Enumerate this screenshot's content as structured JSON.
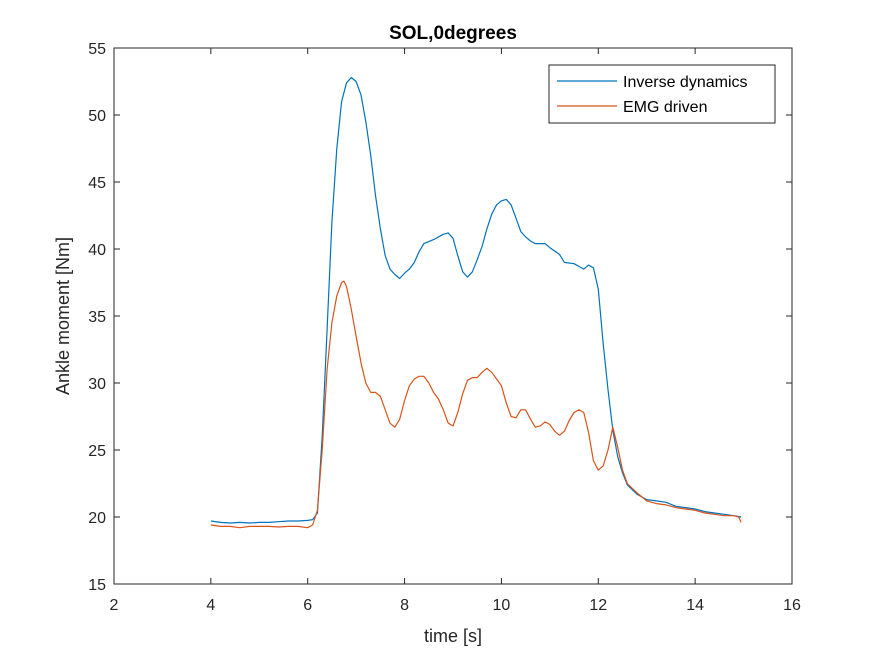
{
  "chart_data": {
    "type": "line",
    "title": "SOL,0degrees",
    "xlabel": "time  [s]",
    "ylabel": "Ankle moment [Nm]",
    "xlim": [
      2,
      16
    ],
    "ylim": [
      15,
      55
    ],
    "xticks": [
      2,
      4,
      6,
      8,
      10,
      12,
      14,
      16
    ],
    "yticks": [
      15,
      20,
      25,
      30,
      35,
      40,
      45,
      50,
      55
    ],
    "grid": false,
    "legend_position": "top-right",
    "series": [
      {
        "name": "Inverse dynamics",
        "color": "#0072BD",
        "points": [
          [
            4.0,
            19.7
          ],
          [
            4.2,
            19.6
          ],
          [
            4.4,
            19.55
          ],
          [
            4.6,
            19.6
          ],
          [
            4.8,
            19.55
          ],
          [
            5.0,
            19.6
          ],
          [
            5.2,
            19.6
          ],
          [
            5.4,
            19.65
          ],
          [
            5.6,
            19.7
          ],
          [
            5.8,
            19.7
          ],
          [
            6.0,
            19.75
          ],
          [
            6.1,
            19.8
          ],
          [
            6.2,
            20.3
          ],
          [
            6.3,
            26.0
          ],
          [
            6.4,
            34.0
          ],
          [
            6.5,
            42.0
          ],
          [
            6.6,
            47.5
          ],
          [
            6.7,
            51.0
          ],
          [
            6.8,
            52.4
          ],
          [
            6.9,
            52.8
          ],
          [
            7.0,
            52.5
          ],
          [
            7.1,
            51.5
          ],
          [
            7.2,
            49.5
          ],
          [
            7.3,
            47.0
          ],
          [
            7.4,
            44.0
          ],
          [
            7.5,
            41.5
          ],
          [
            7.6,
            39.5
          ],
          [
            7.7,
            38.5
          ],
          [
            7.8,
            38.1
          ],
          [
            7.9,
            37.8
          ],
          [
            8.0,
            38.2
          ],
          [
            8.1,
            38.5
          ],
          [
            8.2,
            39.0
          ],
          [
            8.3,
            39.8
          ],
          [
            8.4,
            40.4
          ],
          [
            8.6,
            40.7
          ],
          [
            8.8,
            41.1
          ],
          [
            8.9,
            41.2
          ],
          [
            9.0,
            40.8
          ],
          [
            9.1,
            39.5
          ],
          [
            9.2,
            38.3
          ],
          [
            9.3,
            37.9
          ],
          [
            9.4,
            38.3
          ],
          [
            9.5,
            39.2
          ],
          [
            9.6,
            40.2
          ],
          [
            9.7,
            41.5
          ],
          [
            9.8,
            42.6
          ],
          [
            9.9,
            43.3
          ],
          [
            10.0,
            43.6
          ],
          [
            10.1,
            43.7
          ],
          [
            10.2,
            43.3
          ],
          [
            10.3,
            42.3
          ],
          [
            10.4,
            41.3
          ],
          [
            10.5,
            40.9
          ],
          [
            10.6,
            40.6
          ],
          [
            10.7,
            40.4
          ],
          [
            10.9,
            40.4
          ],
          [
            11.0,
            40.1
          ],
          [
            11.2,
            39.6
          ],
          [
            11.3,
            39.0
          ],
          [
            11.5,
            38.9
          ],
          [
            11.6,
            38.7
          ],
          [
            11.7,
            38.5
          ],
          [
            11.8,
            38.8
          ],
          [
            11.9,
            38.6
          ],
          [
            12.0,
            37.0
          ],
          [
            12.1,
            33.0
          ],
          [
            12.2,
            29.5
          ],
          [
            12.3,
            26.5
          ],
          [
            12.4,
            24.5
          ],
          [
            12.5,
            23.3
          ],
          [
            12.6,
            22.4
          ],
          [
            12.8,
            21.7
          ],
          [
            13.0,
            21.3
          ],
          [
            13.2,
            21.2
          ],
          [
            13.4,
            21.1
          ],
          [
            13.6,
            20.8
          ],
          [
            13.8,
            20.7
          ],
          [
            14.0,
            20.6
          ],
          [
            14.2,
            20.4
          ],
          [
            14.4,
            20.3
          ],
          [
            14.6,
            20.2
          ],
          [
            14.8,
            20.1
          ],
          [
            14.95,
            20.0
          ]
        ]
      },
      {
        "name": "EMG driven",
        "color": "#D95319",
        "points": [
          [
            4.0,
            19.4
          ],
          [
            4.2,
            19.3
          ],
          [
            4.4,
            19.3
          ],
          [
            4.6,
            19.2
          ],
          [
            4.8,
            19.3
          ],
          [
            5.0,
            19.3
          ],
          [
            5.2,
            19.3
          ],
          [
            5.4,
            19.25
          ],
          [
            5.6,
            19.3
          ],
          [
            5.8,
            19.3
          ],
          [
            6.0,
            19.2
          ],
          [
            6.1,
            19.4
          ],
          [
            6.2,
            20.5
          ],
          [
            6.3,
            25.0
          ],
          [
            6.4,
            31.0
          ],
          [
            6.5,
            34.5
          ],
          [
            6.6,
            36.5
          ],
          [
            6.7,
            37.5
          ],
          [
            6.75,
            37.6
          ],
          [
            6.8,
            37.2
          ],
          [
            6.9,
            35.5
          ],
          [
            7.0,
            33.5
          ],
          [
            7.1,
            31.5
          ],
          [
            7.2,
            30.0
          ],
          [
            7.3,
            29.3
          ],
          [
            7.4,
            29.3
          ],
          [
            7.5,
            29.0
          ],
          [
            7.6,
            28.0
          ],
          [
            7.7,
            27.0
          ],
          [
            7.8,
            26.7
          ],
          [
            7.9,
            27.3
          ],
          [
            8.0,
            28.7
          ],
          [
            8.1,
            29.8
          ],
          [
            8.2,
            30.3
          ],
          [
            8.3,
            30.5
          ],
          [
            8.4,
            30.5
          ],
          [
            8.5,
            30.0
          ],
          [
            8.6,
            29.3
          ],
          [
            8.7,
            28.8
          ],
          [
            8.8,
            28.0
          ],
          [
            8.9,
            27.0
          ],
          [
            9.0,
            26.8
          ],
          [
            9.1,
            27.8
          ],
          [
            9.2,
            29.2
          ],
          [
            9.3,
            30.2
          ],
          [
            9.4,
            30.4
          ],
          [
            9.5,
            30.4
          ],
          [
            9.6,
            30.8
          ],
          [
            9.7,
            31.1
          ],
          [
            9.8,
            30.8
          ],
          [
            9.9,
            30.3
          ],
          [
            10.0,
            29.8
          ],
          [
            10.1,
            28.5
          ],
          [
            10.2,
            27.5
          ],
          [
            10.3,
            27.4
          ],
          [
            10.4,
            28.0
          ],
          [
            10.5,
            28.0
          ],
          [
            10.6,
            27.3
          ],
          [
            10.7,
            26.7
          ],
          [
            10.8,
            26.8
          ],
          [
            10.9,
            27.1
          ],
          [
            11.0,
            26.9
          ],
          [
            11.1,
            26.4
          ],
          [
            11.2,
            26.1
          ],
          [
            11.3,
            26.4
          ],
          [
            11.4,
            27.2
          ],
          [
            11.5,
            27.8
          ],
          [
            11.6,
            28.0
          ],
          [
            11.7,
            27.8
          ],
          [
            11.8,
            26.3
          ],
          [
            11.9,
            24.2
          ],
          [
            12.0,
            23.5
          ],
          [
            12.1,
            23.8
          ],
          [
            12.2,
            25.0
          ],
          [
            12.3,
            26.7
          ],
          [
            12.4,
            25.2
          ],
          [
            12.5,
            23.5
          ],
          [
            12.6,
            22.5
          ],
          [
            12.8,
            21.8
          ],
          [
            13.0,
            21.2
          ],
          [
            13.2,
            21.0
          ],
          [
            13.4,
            20.9
          ],
          [
            13.6,
            20.7
          ],
          [
            13.8,
            20.6
          ],
          [
            14.0,
            20.5
          ],
          [
            14.2,
            20.3
          ],
          [
            14.4,
            20.2
          ],
          [
            14.6,
            20.1
          ],
          [
            14.8,
            20.1
          ],
          [
            14.9,
            20.0
          ],
          [
            14.95,
            19.6
          ]
        ]
      }
    ]
  }
}
